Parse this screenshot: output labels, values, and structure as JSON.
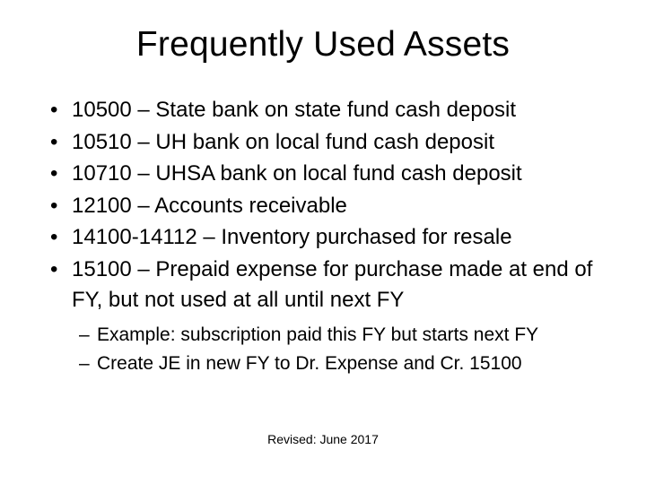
{
  "title": "Frequently Used Assets",
  "bullets": [
    "10500 – State bank on state fund cash deposit",
    "10510 – UH bank on local fund cash deposit",
    "10710 – UHSA bank on local fund cash deposit",
    "12100 – Accounts receivable",
    "14100-14112 – Inventory purchased for resale",
    "15100 – Prepaid expense for purchase made at end of FY, but not used at all until next FY"
  ],
  "sub_bullets": [
    "Example: subscription paid this FY but starts next FY",
    "Create JE in new FY to Dr. Expense and Cr. 15100"
  ],
  "footer": "Revised: June 2017",
  "colors": {
    "background": "#ffffff",
    "text": "#000000"
  },
  "typography": {
    "title_fontsize": 39,
    "bullet_fontsize": 24,
    "sub_bullet_fontsize": 21,
    "footer_fontsize": 14,
    "font_family": "Arial"
  }
}
